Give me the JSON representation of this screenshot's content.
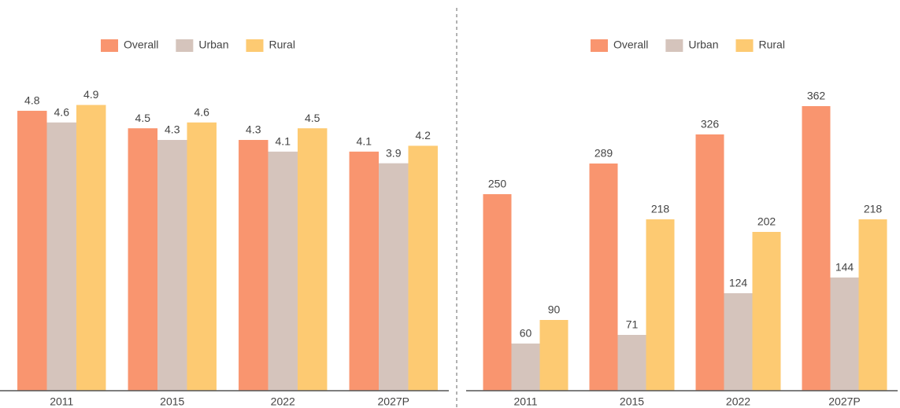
{
  "chart_data": [
    {
      "type": "bar",
      "categories": [
        "2011",
        "2015",
        "2022",
        "2027P"
      ],
      "series": [
        {
          "name": "Overall",
          "color": "#f9956f",
          "values": [
            4.8,
            4.5,
            4.3,
            4.1
          ]
        },
        {
          "name": "Urban",
          "color": "#d5c4bc",
          "values": [
            4.6,
            4.3,
            4.1,
            3.9
          ]
        },
        {
          "name": "Rural",
          "color": "#fdca72",
          "values": [
            4.9,
            4.6,
            4.5,
            4.2
          ]
        }
      ],
      "ylim": [
        0,
        5.5
      ],
      "legend": "top"
    },
    {
      "type": "bar",
      "categories": [
        "2011",
        "2015",
        "2022",
        "2027P"
      ],
      "series": [
        {
          "name": "Overall",
          "color": "#f9956f",
          "values": [
            250,
            289,
            326,
            362
          ]
        },
        {
          "name": "Urban",
          "color": "#d5c4bc",
          "values": [
            60,
            71,
            124,
            144
          ]
        },
        {
          "name": "Rural",
          "color": "#fdca72",
          "values": [
            90,
            218,
            202,
            218
          ]
        }
      ],
      "ylim": [
        0,
        400
      ],
      "legend": "top"
    }
  ]
}
